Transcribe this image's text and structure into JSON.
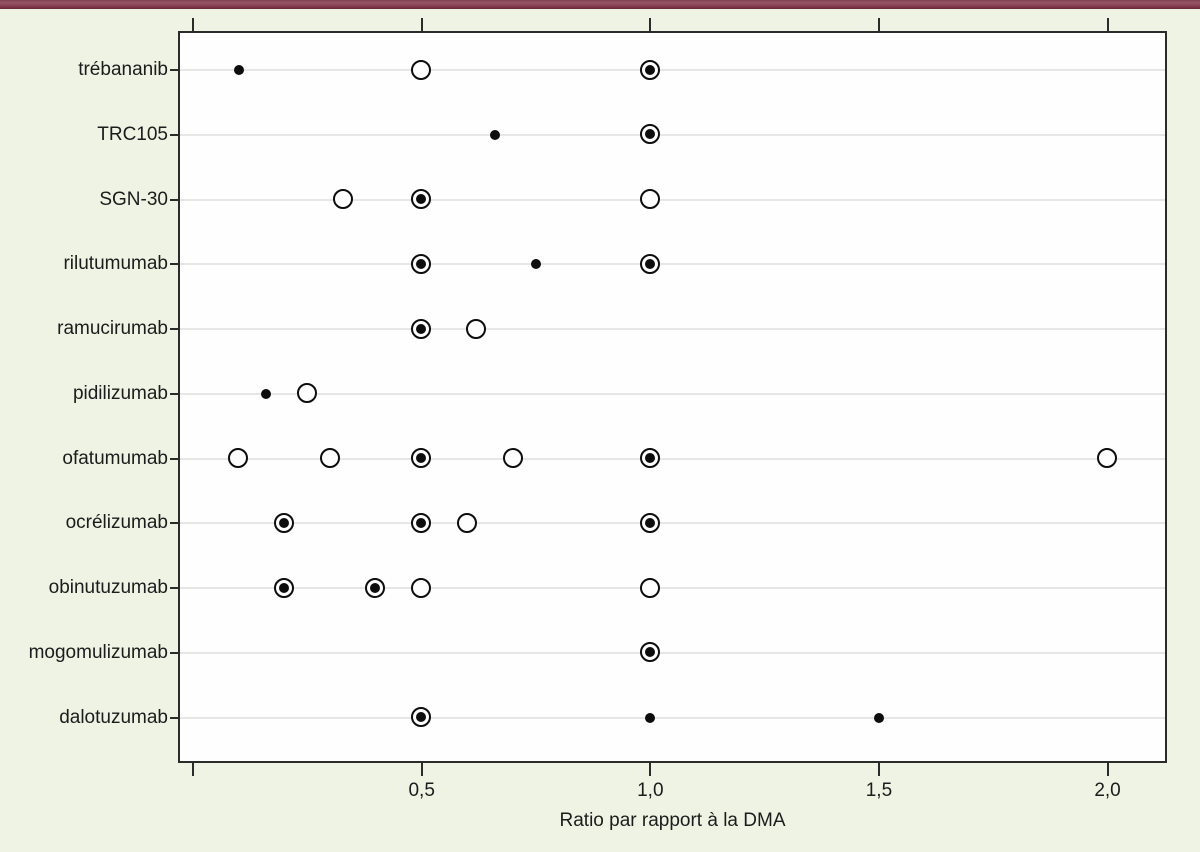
{
  "figure": {
    "accent_bar_color": "#8b4154",
    "background_color": "#eef3e4"
  },
  "chart_data": {
    "type": "scatter",
    "title": "",
    "xlabel": "Ratio par rapport à la DMA",
    "ylabel": "",
    "xlim": [
      -0.033,
      2.13
    ],
    "grid": "horizontal-per-row",
    "legend": "none",
    "marker_types": {
      "dot": "small filled black dot",
      "circle": "open circle (white fill, black outline)",
      "target": "open circle with filled black center"
    },
    "xticks": [
      {
        "value": 0.0,
        "label": ""
      },
      {
        "value": 0.5,
        "label": "0,5"
      },
      {
        "value": 1.0,
        "label": "1,0"
      },
      {
        "value": 1.5,
        "label": "1,5"
      },
      {
        "value": 2.0,
        "label": "2,0"
      }
    ],
    "rows": [
      {
        "label": "trébananib",
        "points": [
          {
            "x": 0.1,
            "marker": "dot"
          },
          {
            "x": 0.5,
            "marker": "circle"
          },
          {
            "x": 1.0,
            "marker": "target"
          }
        ]
      },
      {
        "label": "TRC105",
        "points": [
          {
            "x": 0.66,
            "marker": "dot"
          },
          {
            "x": 1.0,
            "marker": "target"
          }
        ]
      },
      {
        "label": "SGN-30",
        "points": [
          {
            "x": 0.33,
            "marker": "circle"
          },
          {
            "x": 0.5,
            "marker": "target"
          },
          {
            "x": 1.0,
            "marker": "circle"
          }
        ]
      },
      {
        "label": "rilutumumab",
        "points": [
          {
            "x": 0.5,
            "marker": "target"
          },
          {
            "x": 0.75,
            "marker": "dot"
          },
          {
            "x": 1.0,
            "marker": "target"
          }
        ]
      },
      {
        "label": "ramucirumab",
        "points": [
          {
            "x": 0.5,
            "marker": "target"
          },
          {
            "x": 0.62,
            "marker": "circle"
          }
        ]
      },
      {
        "label": "pidilizumab",
        "points": [
          {
            "x": 0.16,
            "marker": "dot"
          },
          {
            "x": 0.25,
            "marker": "circle"
          }
        ]
      },
      {
        "label": "ofatumumab",
        "points": [
          {
            "x": 0.1,
            "marker": "circle"
          },
          {
            "x": 0.3,
            "marker": "circle"
          },
          {
            "x": 0.5,
            "marker": "target"
          },
          {
            "x": 0.7,
            "marker": "circle"
          },
          {
            "x": 1.0,
            "marker": "target"
          },
          {
            "x": 2.0,
            "marker": "circle"
          }
        ]
      },
      {
        "label": "ocrélizumab",
        "points": [
          {
            "x": 0.2,
            "marker": "target"
          },
          {
            "x": 0.5,
            "marker": "target"
          },
          {
            "x": 0.6,
            "marker": "circle"
          },
          {
            "x": 1.0,
            "marker": "target"
          }
        ]
      },
      {
        "label": "obinutuzumab",
        "points": [
          {
            "x": 0.2,
            "marker": "target"
          },
          {
            "x": 0.4,
            "marker": "target"
          },
          {
            "x": 0.5,
            "marker": "circle"
          },
          {
            "x": 1.0,
            "marker": "circle"
          }
        ]
      },
      {
        "label": "mogomulizumab",
        "points": [
          {
            "x": 1.0,
            "marker": "target"
          }
        ]
      },
      {
        "label": "dalotuzumab",
        "points": [
          {
            "x": 0.5,
            "marker": "target"
          },
          {
            "x": 1.0,
            "marker": "dot"
          },
          {
            "x": 1.5,
            "marker": "dot"
          }
        ]
      }
    ],
    "colors": {
      "marker": "#0d0d0d",
      "plot_background": "#fefefe",
      "frame": "#2b2b2b",
      "grid_line": "#e6e6e6"
    }
  }
}
